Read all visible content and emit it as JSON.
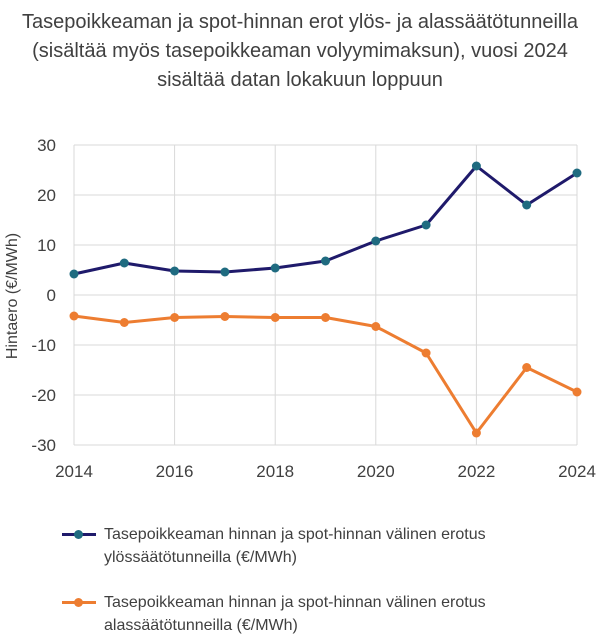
{
  "chart_data": {
    "type": "line",
    "title": "Tasepoikkeaman ja spot-hinnan erot ylös- ja alassäätötunneilla (sisältää myös tasepoikkeaman volyymimaksun), vuosi 2024 sisältää datan lokakuun loppuun",
    "ylabel": "Hintaero (€/MWh)",
    "xlabel": "",
    "x": [
      2014,
      2015,
      2016,
      2017,
      2018,
      2019,
      2020,
      2021,
      2022,
      2023,
      2024
    ],
    "xlim": [
      2014,
      2024
    ],
    "ylim": [
      -30,
      30
    ],
    "x_ticks": [
      2014,
      2016,
      2018,
      2020,
      2022,
      2024
    ],
    "y_ticks": [
      30,
      20,
      10,
      0,
      -10,
      -20,
      -30
    ],
    "grid": true,
    "legend_position": "bottom",
    "series": [
      {
        "name": "Tasepoikkeaman hinnan ja spot-hinnan välinen erotus ylössäätötunneilla (€/MWh)",
        "color": "#1f1a6b",
        "marker_color": "#1f6b80",
        "values": [
          4.2,
          6.4,
          4.8,
          4.6,
          5.4,
          6.8,
          10.8,
          14.0,
          25.8,
          18.0,
          24.4
        ]
      },
      {
        "name": "Tasepoikkeaman hinnan ja spot-hinnan välinen erotus alassäätötunneilla (€/MWh)",
        "color": "#ed7d31",
        "marker_color": "#ed7d31",
        "values": [
          -4.2,
          -5.5,
          -4.5,
          -4.3,
          -4.5,
          -4.5,
          -6.3,
          -11.6,
          -27.6,
          -14.5,
          -19.4
        ]
      }
    ]
  }
}
